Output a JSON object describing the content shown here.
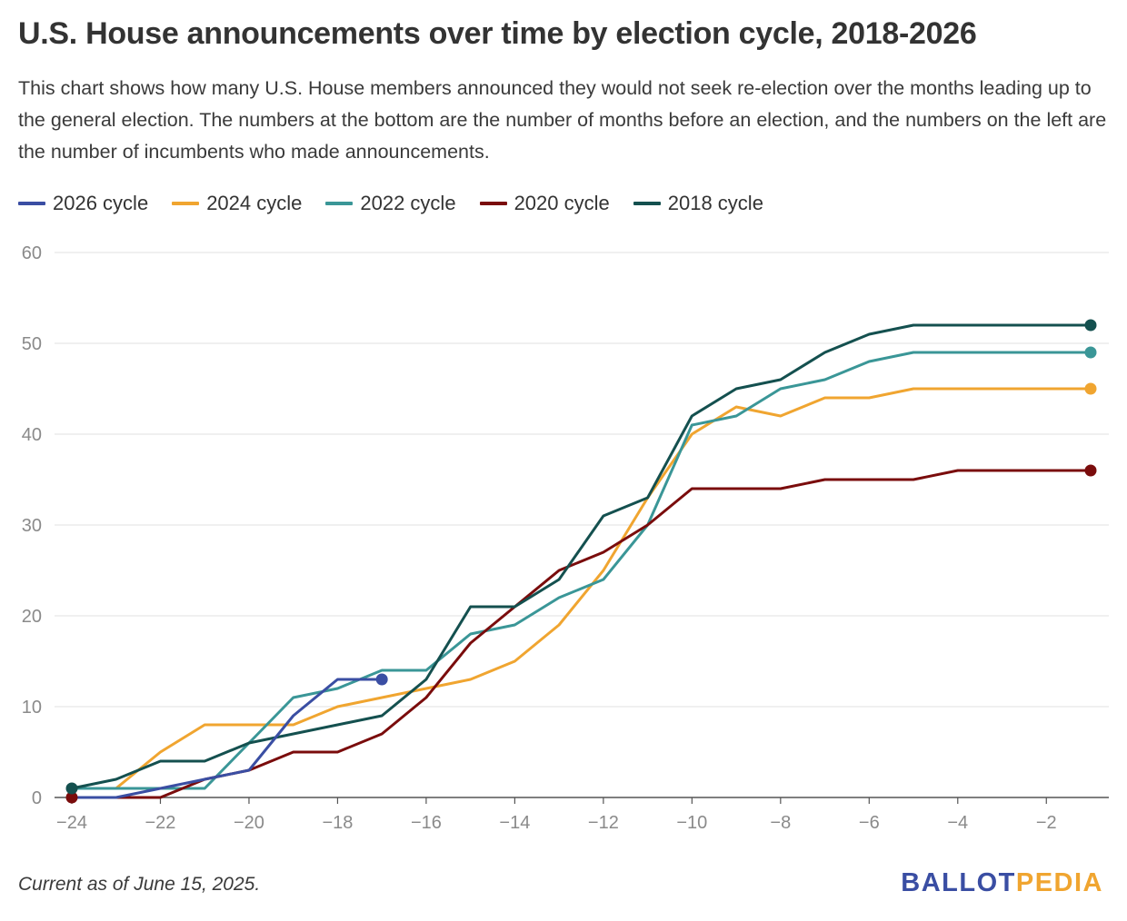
{
  "header": {
    "title": "U.S. House announcements over time by election cycle, 2018-2026",
    "subtitle": "This chart shows how many U.S. House members announced they would not seek re-election over the months leading up to the general election. The numbers at the bottom are the number of months before an election, and the numbers on the left are the number of incumbents who made announcements."
  },
  "footer": {
    "note": "Current as of June 15, 2025.",
    "logo_ballot": "BALLOT",
    "logo_pedia": "PEDIA"
  },
  "chart_data": {
    "type": "line",
    "title": "U.S. House announcements over time by election cycle, 2018-2026",
    "xlabel": "",
    "ylabel": "",
    "xlim": [
      -24,
      -1
    ],
    "ylim": [
      0,
      60
    ],
    "x_ticks": [
      -24,
      -22,
      -20,
      -18,
      -16,
      -14,
      -12,
      -10,
      -8,
      -6,
      -4,
      -2
    ],
    "y_ticks": [
      0,
      10,
      20,
      30,
      40,
      50,
      60
    ],
    "x_tick_labels": [
      "−24",
      "−22",
      "−20",
      "−18",
      "−16",
      "−14",
      "−12",
      "−10",
      "−8",
      "−6",
      "−4",
      "−2"
    ],
    "y_tick_labels": [
      "0",
      "10",
      "20",
      "30",
      "40",
      "50",
      "60"
    ],
    "grid": true,
    "legend_position": "top-left",
    "series": [
      {
        "name": "2026 cycle",
        "color": "#3a4ea3",
        "x": [
          -24,
          -23,
          -22,
          -21,
          -20,
          -19,
          -18,
          -17
        ],
        "values": [
          0,
          0,
          1,
          2,
          3,
          9,
          13,
          13
        ]
      },
      {
        "name": "2024 cycle",
        "color": "#f0a530",
        "x": [
          -24,
          -23,
          -22,
          -21,
          -20,
          -19,
          -18,
          -17,
          -16,
          -15,
          -14,
          -13,
          -12,
          -11,
          -10,
          -9,
          -8,
          -7,
          -6,
          -5,
          -4,
          -3,
          -2,
          -1
        ],
        "values": [
          1,
          1,
          5,
          8,
          8,
          8,
          10,
          11,
          12,
          13,
          15,
          19,
          25,
          33,
          40,
          43,
          42,
          44,
          44,
          45,
          45,
          45,
          45,
          45
        ]
      },
      {
        "name": "2022 cycle",
        "color": "#3a9697",
        "x": [
          -24,
          -23,
          -22,
          -21,
          -20,
          -19,
          -18,
          -17,
          -16,
          -15,
          -14,
          -13,
          -12,
          -11,
          -10,
          -9,
          -8,
          -7,
          -6,
          -5,
          -4,
          -3,
          -2,
          -1
        ],
        "values": [
          1,
          1,
          1,
          1,
          6,
          11,
          12,
          14,
          14,
          18,
          19,
          22,
          24,
          30,
          41,
          42,
          45,
          46,
          48,
          49,
          49,
          49,
          49,
          49
        ]
      },
      {
        "name": "2020 cycle",
        "color": "#7a0c0c",
        "x": [
          -24,
          -23,
          -22,
          -21,
          -20,
          -19,
          -18,
          -17,
          -16,
          -15,
          -14,
          -13,
          -12,
          -11,
          -10,
          -9,
          -8,
          -7,
          -6,
          -5,
          -4,
          -3,
          -2,
          -1
        ],
        "values": [
          0,
          0,
          0,
          2,
          3,
          5,
          5,
          7,
          11,
          17,
          21,
          25,
          27,
          30,
          34,
          34,
          34,
          35,
          35,
          35,
          36,
          36,
          36,
          36
        ]
      },
      {
        "name": "2018 cycle",
        "color": "#14504f",
        "x": [
          -24,
          -23,
          -22,
          -21,
          -20,
          -19,
          -18,
          -17,
          -16,
          -15,
          -14,
          -13,
          -12,
          -11,
          -10,
          -9,
          -8,
          -7,
          -6,
          -5,
          -4,
          -3,
          -2,
          -1
        ],
        "values": [
          1,
          2,
          4,
          4,
          6,
          7,
          8,
          9,
          13,
          21,
          21,
          24,
          31,
          33,
          42,
          45,
          46,
          49,
          51,
          52,
          52,
          52,
          52,
          52
        ]
      }
    ]
  }
}
